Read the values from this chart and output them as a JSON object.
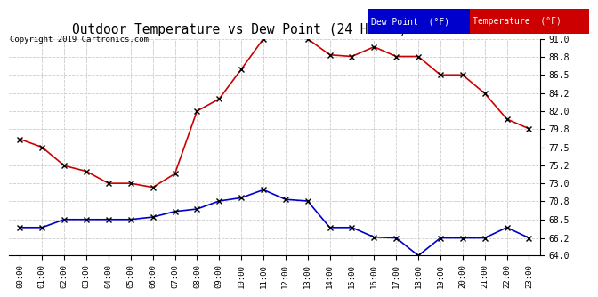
{
  "title": "Outdoor Temperature vs Dew Point (24 Hours) 20190728",
  "copyright": "Copyright 2019 Cartronics.com",
  "hours": [
    "00:00",
    "01:00",
    "02:00",
    "03:00",
    "04:00",
    "05:00",
    "06:00",
    "07:00",
    "08:00",
    "09:00",
    "10:00",
    "11:00",
    "12:00",
    "13:00",
    "14:00",
    "15:00",
    "16:00",
    "17:00",
    "18:00",
    "19:00",
    "20:00",
    "21:00",
    "22:00",
    "23:00"
  ],
  "temperature": [
    78.5,
    77.5,
    75.2,
    74.5,
    73.0,
    73.0,
    72.5,
    74.2,
    82.0,
    83.5,
    87.2,
    91.0,
    91.4,
    91.0,
    89.0,
    88.8,
    90.0,
    88.8,
    88.8,
    86.5,
    86.5,
    84.2,
    81.0,
    79.8
  ],
  "dew_point": [
    67.5,
    67.5,
    68.5,
    68.5,
    68.5,
    68.5,
    68.8,
    69.5,
    69.8,
    70.8,
    71.2,
    72.2,
    71.0,
    70.8,
    67.5,
    67.5,
    66.3,
    66.2,
    64.0,
    66.2,
    66.2,
    66.2,
    67.5,
    66.2
  ],
  "temp_color": "#cc0000",
  "dew_color": "#0000cc",
  "marker_color": "#000000",
  "ylim_min": 64.0,
  "ylim_max": 91.0,
  "yticks": [
    64.0,
    66.2,
    68.5,
    70.8,
    73.0,
    75.2,
    77.5,
    79.8,
    82.0,
    84.2,
    86.5,
    88.8,
    91.0
  ],
  "bg_color": "#ffffff",
  "grid_color": "#cccccc",
  "legend_dew_bg": "#0000cc",
  "legend_temp_bg": "#cc0000",
  "legend_text_color": "#ffffff"
}
